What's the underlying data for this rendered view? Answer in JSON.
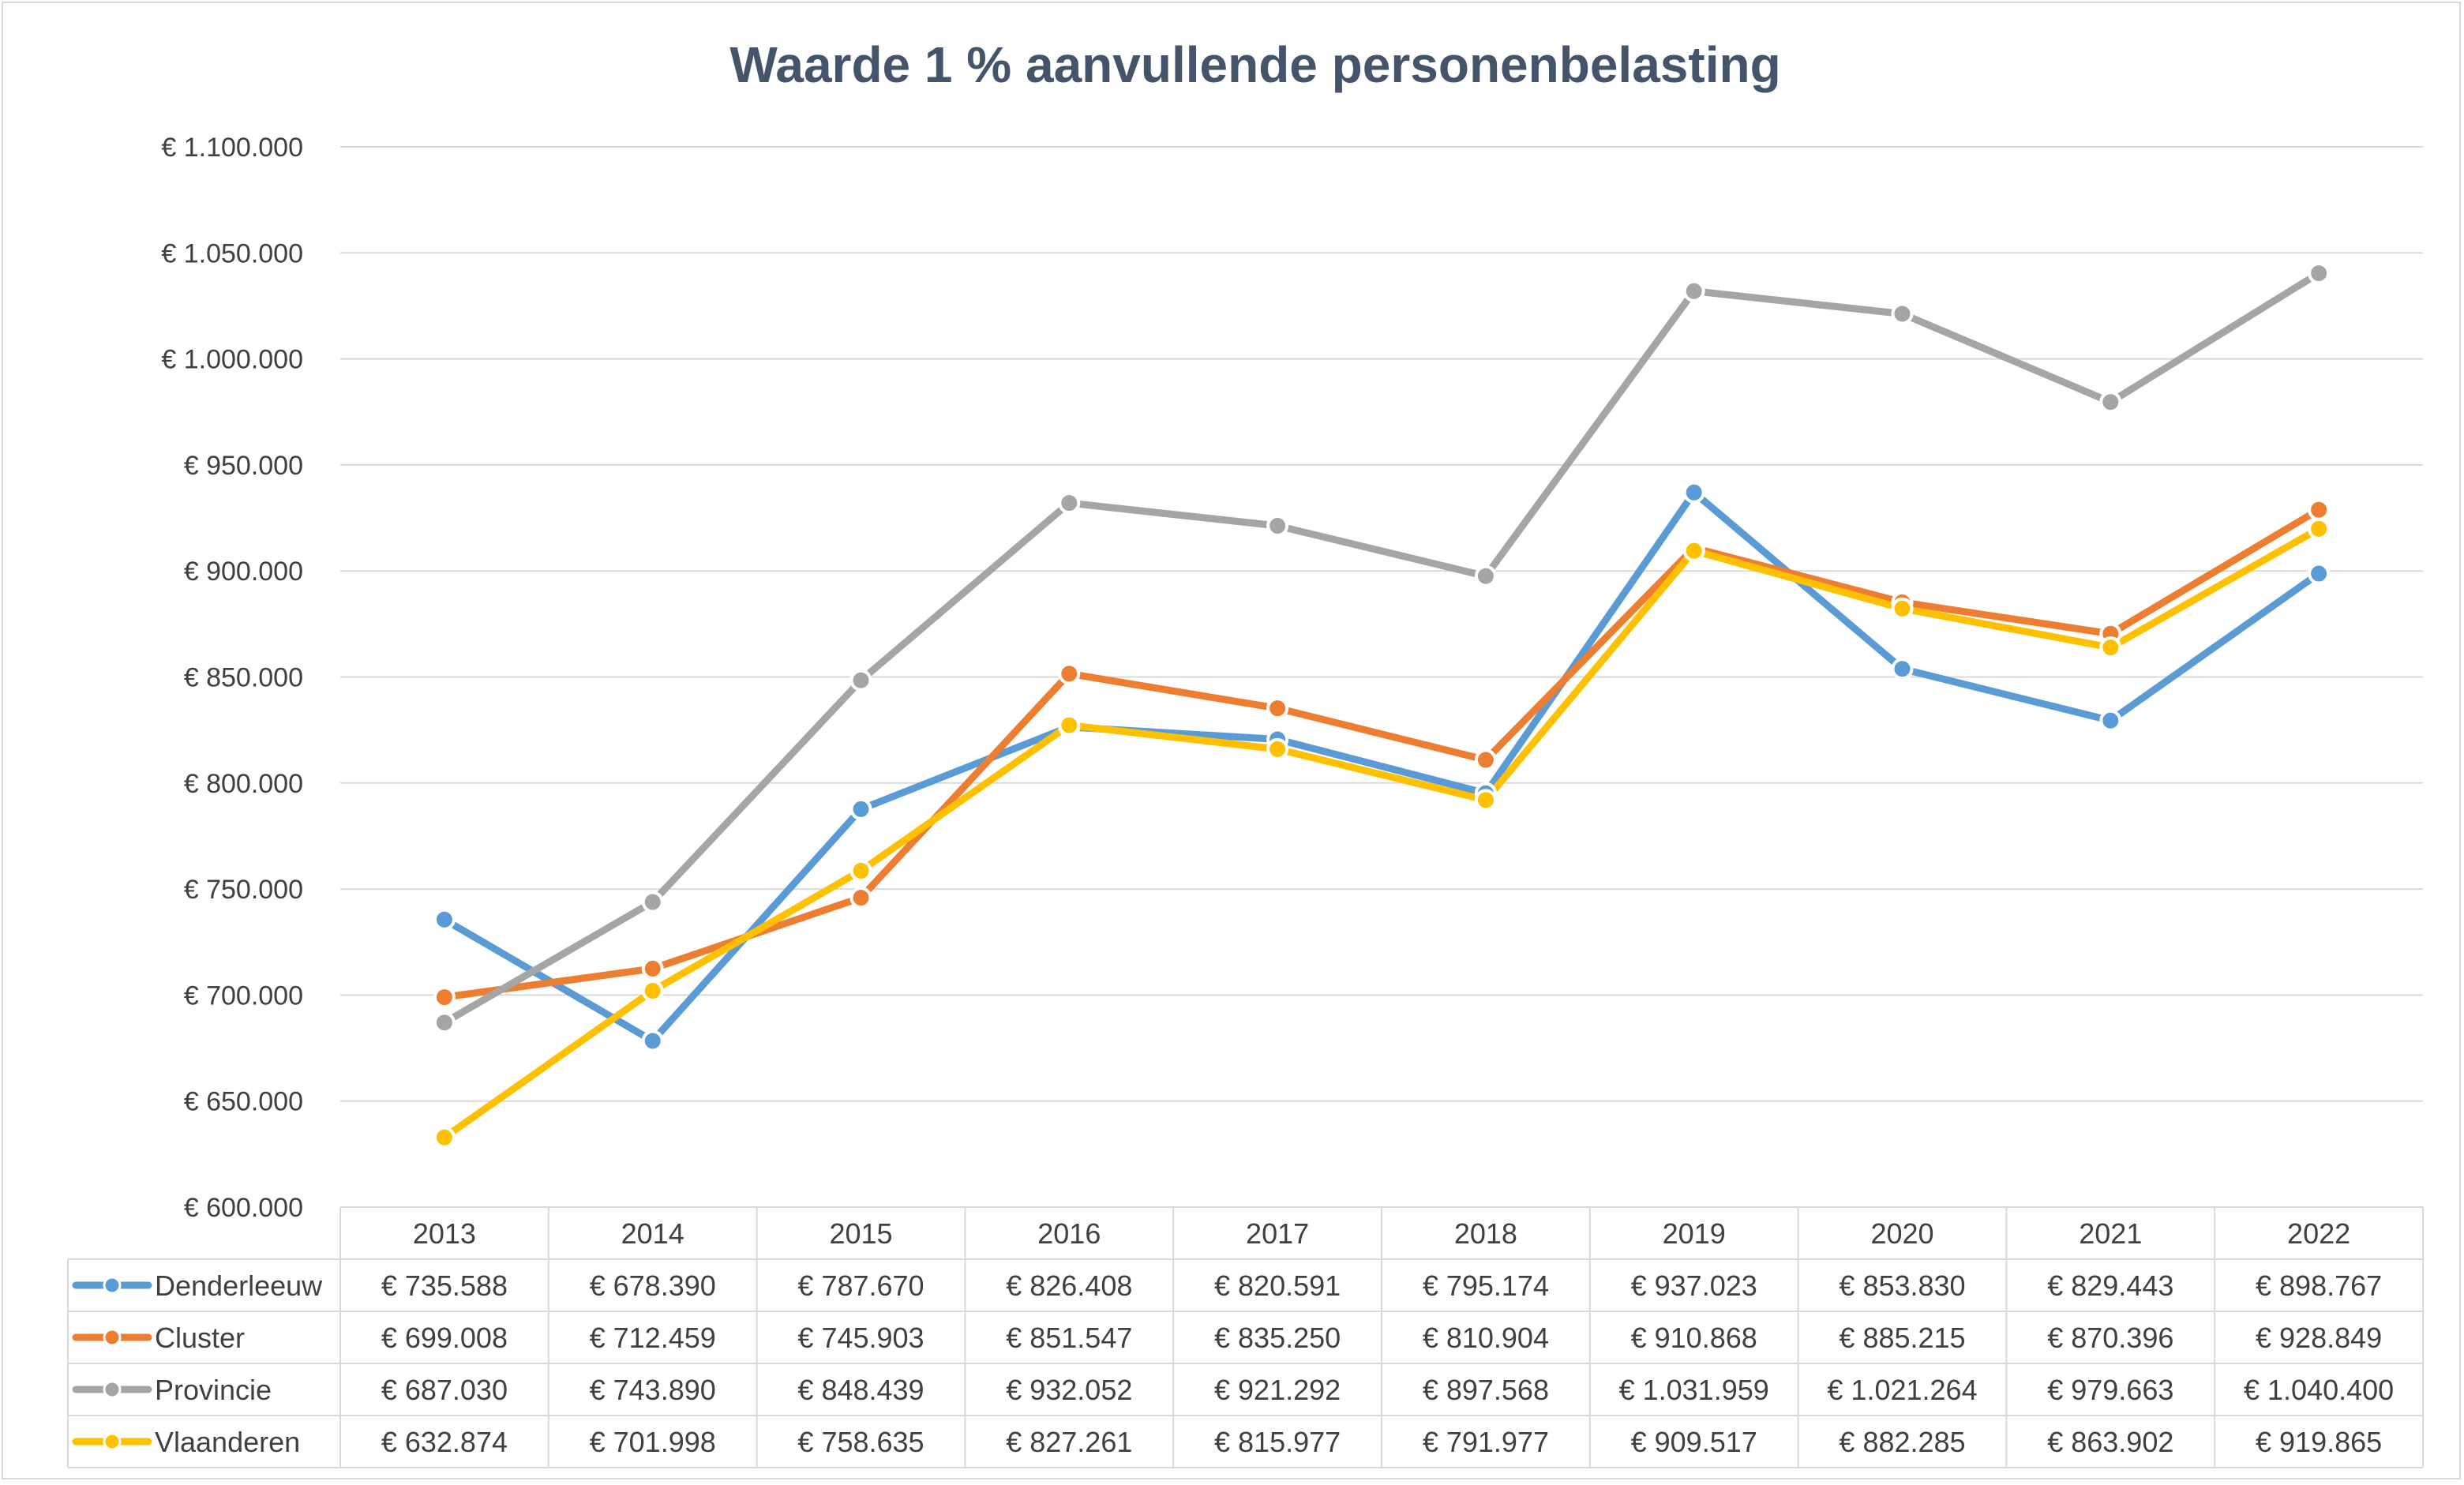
{
  "chart_data": {
    "type": "line",
    "title": "Waarde 1 % aanvullende personenbelasting",
    "x": [
      "2013",
      "2014",
      "2015",
      "2016",
      "2017",
      "2018",
      "2019",
      "2020",
      "2021",
      "2022"
    ],
    "ylim": [
      600000,
      1100000
    ],
    "ytick_step": 50000,
    "yticks": [
      "€ 600.000",
      "€ 650.000",
      "€ 700.000",
      "€ 750.000",
      "€ 800.000",
      "€ 850.000",
      "€ 900.000",
      "€ 950.000",
      "€ 1.000.000",
      "€ 1.050.000",
      "€ 1.100.000"
    ],
    "grid": true,
    "legend": "data-table",
    "series": [
      {
        "name": "Denderleeuw",
        "color": "#5b9bd5",
        "values": [
          735588,
          678390,
          787670,
          826408,
          820591,
          795174,
          937023,
          853830,
          829443,
          898767
        ],
        "labels": [
          "€ 735.588",
          "€ 678.390",
          "€ 787.670",
          "€ 826.408",
          "€ 820.591",
          "€ 795.174",
          "€ 937.023",
          "€ 853.830",
          "€ 829.443",
          "€ 898.767"
        ]
      },
      {
        "name": "Cluster",
        "color": "#ed7d31",
        "values": [
          699008,
          712459,
          745903,
          851547,
          835250,
          810904,
          910868,
          885215,
          870396,
          928849
        ],
        "labels": [
          "€ 699.008",
          "€ 712.459",
          "€ 745.903",
          "€ 851.547",
          "€ 835.250",
          "€ 810.904",
          "€ 910.868",
          "€ 885.215",
          "€ 870.396",
          "€ 928.849"
        ]
      },
      {
        "name": "Provincie",
        "color": "#a5a5a5",
        "values": [
          687030,
          743890,
          848439,
          932052,
          921292,
          897568,
          1031959,
          1021264,
          979663,
          1040400
        ],
        "labels": [
          "€ 687.030",
          "€ 743.890",
          "€ 848.439",
          "€ 932.052",
          "€ 921.292",
          "€ 897.568",
          "€ 1.031.959",
          "€ 1.021.264",
          "€ 979.663",
          "€ 1.040.400"
        ]
      },
      {
        "name": "Vlaanderen",
        "color": "#ffc000",
        "values": [
          632874,
          701998,
          758635,
          827261,
          815977,
          791977,
          909517,
          882285,
          863902,
          919865
        ],
        "labels": [
          "€ 632.874",
          "€ 701.998",
          "€ 758.635",
          "€ 827.261",
          "€ 815.977",
          "€ 791.977",
          "€ 909.517",
          "€ 882.285",
          "€ 863.902",
          "€ 919.865"
        ]
      }
    ]
  }
}
